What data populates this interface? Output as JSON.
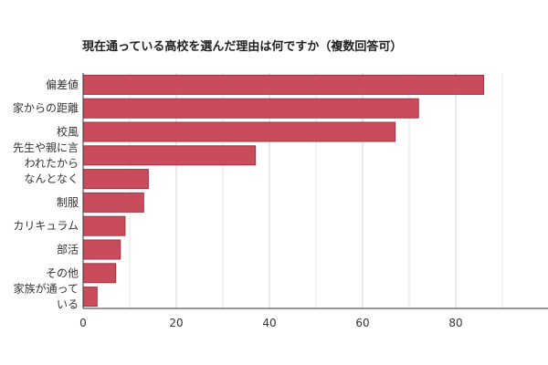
{
  "chart_data": {
    "type": "bar",
    "orientation": "horizontal",
    "title": "現在通っている高校を選んだ理由は何ですか（複数回答可）",
    "categories": [
      [
        "偏差値"
      ],
      [
        "家からの距離"
      ],
      [
        "校風"
      ],
      [
        "先生や親に言",
        "われたから"
      ],
      [
        "なんとなく"
      ],
      [
        "制服"
      ],
      [
        "カリキュラム"
      ],
      [
        "部活"
      ],
      [
        "その他"
      ],
      [
        "家族が通って",
        "いる"
      ]
    ],
    "values": [
      86,
      72,
      67,
      37,
      14,
      13,
      9,
      8,
      7,
      3
    ],
    "x_ticks": [
      0,
      20,
      40,
      60,
      80
    ],
    "xlim": [
      0,
      100
    ],
    "grid": true,
    "bar_color": "#c94c5c",
    "bar_edge_color": "#9e3444"
  }
}
